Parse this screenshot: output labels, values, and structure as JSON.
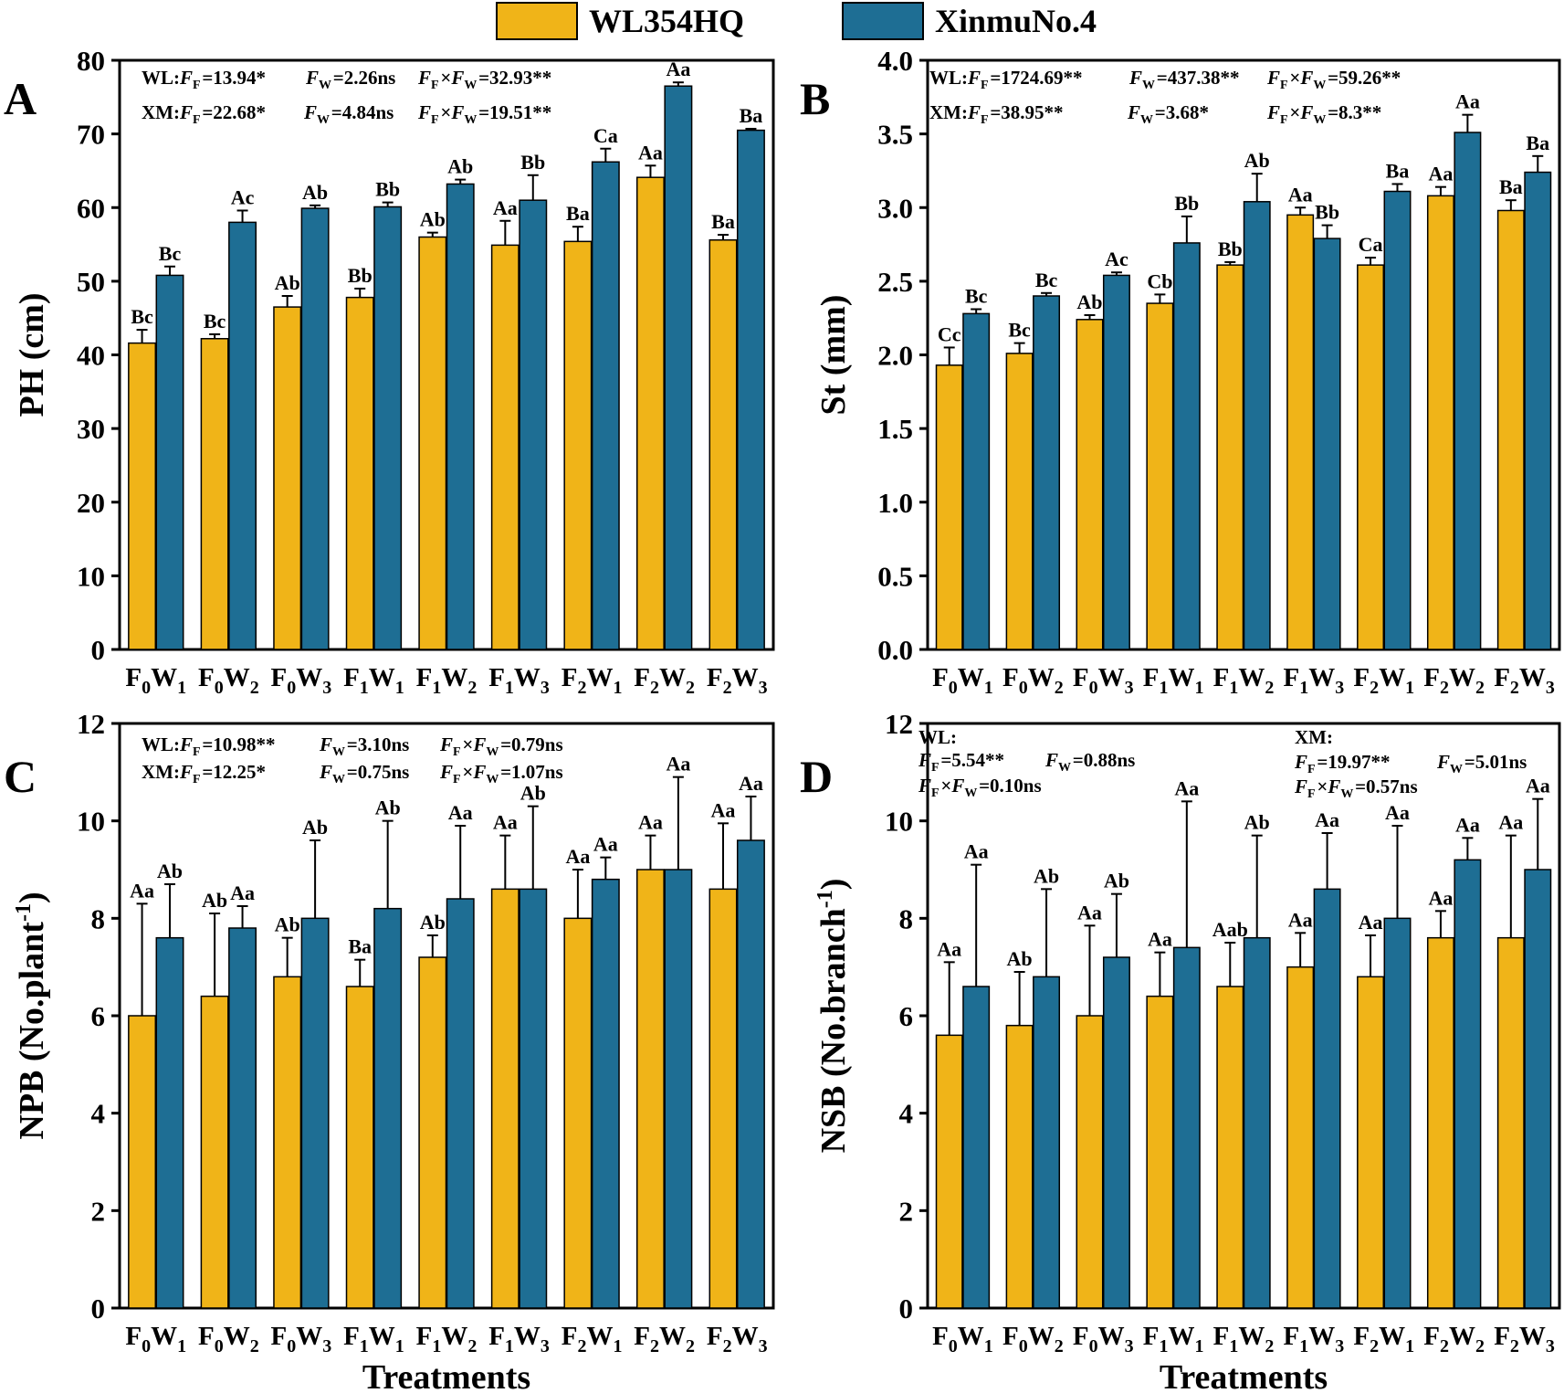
{
  "legend": {
    "series": [
      {
        "name": "WL354HQ",
        "color": "#f0b418"
      },
      {
        "name": "XinmuNo.4",
        "color": "#1e6e94"
      }
    ]
  },
  "chart_data": [
    {
      "panel": "A",
      "type": "bar",
      "ylabel": "PH (cm)",
      "xlabel": "",
      "ylim": [
        0,
        80
      ],
      "yticks": [
        0,
        10,
        20,
        30,
        40,
        50,
        60,
        70,
        80
      ],
      "categories": [
        [
          "F",
          "0",
          "W",
          "1"
        ],
        [
          "F",
          "0",
          "W",
          "2"
        ],
        [
          "F",
          "0",
          "W",
          "3"
        ],
        [
          "F",
          "1",
          "W",
          "1"
        ],
        [
          "F",
          "1",
          "W",
          "2"
        ],
        [
          "F",
          "1",
          "W",
          "3"
        ],
        [
          "F",
          "2",
          "W",
          "1"
        ],
        [
          "F",
          "2",
          "W",
          "2"
        ],
        [
          "F",
          "2",
          "W",
          "3"
        ]
      ],
      "series": [
        {
          "name": "WL354HQ",
          "values": [
            41.6,
            42.2,
            46.5,
            47.8,
            56.0,
            54.9,
            55.4,
            64.1,
            55.6
          ],
          "errors": [
            1.8,
            0.6,
            1.5,
            1.2,
            0.6,
            3.3,
            2.0,
            1.6,
            0.7
          ],
          "labels": [
            "Bc",
            "Bc",
            "Ab",
            "Bb",
            "Ab",
            "Aa",
            "Ba",
            "Aa",
            "Ba"
          ]
        },
        {
          "name": "XinmuNo.4",
          "values": [
            50.8,
            58.0,
            59.9,
            60.1,
            63.2,
            61.0,
            66.2,
            76.5,
            70.5
          ],
          "errors": [
            1.2,
            1.6,
            0.4,
            0.6,
            0.6,
            3.4,
            1.8,
            0.5,
            0.2
          ],
          "labels": [
            "Bc",
            "Ac",
            "Ab",
            "Bb",
            "Ab",
            "Bb",
            "Ca",
            "Aa",
            "Ba"
          ]
        }
      ],
      "annotations": [
        [
          [
            "WL:",
            ""
          ],
          [
            "F",
            "F"
          ],
          [
            "=13.94*",
            ""
          ],
          [
            "F",
            "W"
          ],
          [
            "=2.26ns",
            ""
          ],
          [
            "F",
            "F"
          ],
          [
            "×",
            ""
          ],
          [
            "F",
            "W"
          ],
          [
            "=32.93**",
            ""
          ]
        ],
        [
          [
            "XM:",
            ""
          ],
          [
            "F",
            "F"
          ],
          [
            "=22.68*",
            ""
          ],
          [
            "F",
            "W"
          ],
          [
            "=4.84ns",
            ""
          ],
          [
            "F",
            "F"
          ],
          [
            "×",
            ""
          ],
          [
            "F",
            "W"
          ],
          [
            "=19.51**",
            ""
          ]
        ]
      ]
    },
    {
      "panel": "B",
      "type": "bar",
      "ylabel": "St (mm)",
      "xlabel": "",
      "ylim": [
        0,
        4
      ],
      "yticks": [
        "0.0",
        "0.5",
        "1.0",
        "1.5",
        "2.0",
        "2.5",
        "3.0",
        "3.5",
        "4.0"
      ],
      "categories": [
        [
          "F",
          "0",
          "W",
          "1"
        ],
        [
          "F",
          "0",
          "W",
          "2"
        ],
        [
          "F",
          "0",
          "W",
          "3"
        ],
        [
          "F",
          "1",
          "W",
          "1"
        ],
        [
          "F",
          "1",
          "W",
          "2"
        ],
        [
          "F",
          "1",
          "W",
          "3"
        ],
        [
          "F",
          "2",
          "W",
          "1"
        ],
        [
          "F",
          "2",
          "W",
          "2"
        ],
        [
          "F",
          "2",
          "W",
          "3"
        ]
      ],
      "series": [
        {
          "name": "WL354HQ",
          "values": [
            1.93,
            2.01,
            2.24,
            2.35,
            2.61,
            2.95,
            2.61,
            3.08,
            2.98
          ],
          "errors": [
            0.12,
            0.07,
            0.03,
            0.06,
            0.02,
            0.05,
            0.05,
            0.06,
            0.07
          ],
          "labels": [
            "Cc",
            "Bc",
            "Ab",
            "Cb",
            "Bb",
            "Aa",
            "Ca",
            "Aa",
            "Ba"
          ]
        },
        {
          "name": "XinmuNo.4",
          "values": [
            2.28,
            2.4,
            2.54,
            2.76,
            3.04,
            2.79,
            3.11,
            3.51,
            3.24
          ],
          "errors": [
            0.03,
            0.02,
            0.02,
            0.18,
            0.19,
            0.09,
            0.05,
            0.12,
            0.11
          ],
          "labels": [
            "Bc",
            "Bc",
            "Ac",
            "Bb",
            "Ab",
            "Bb",
            "Ba",
            "Aa",
            "Ba"
          ]
        }
      ],
      "annotations": [
        [
          [
            "WL:",
            ""
          ],
          [
            "F",
            "F"
          ],
          [
            "=1724.69**",
            ""
          ],
          [
            "F",
            "W"
          ],
          [
            "=437.38**",
            ""
          ],
          [
            "F",
            "F"
          ],
          [
            "×",
            ""
          ],
          [
            "F",
            "W"
          ],
          [
            "=59.26**",
            ""
          ]
        ],
        [
          [
            "XM:",
            ""
          ],
          [
            "F",
            "F"
          ],
          [
            "=38.95**",
            ""
          ],
          [
            "F",
            "W"
          ],
          [
            "=3.68*",
            ""
          ],
          [
            "F",
            "F"
          ],
          [
            "×",
            ""
          ],
          [
            "F",
            "W"
          ],
          [
            "=8.3**",
            ""
          ]
        ]
      ]
    },
    {
      "panel": "C",
      "type": "bar",
      "ylabel": "NPB (No.plant",
      "ylabel_sup": "-1",
      "ylabel_end": ")",
      "xlabel": "Treatments",
      "ylim": [
        0,
        12
      ],
      "yticks": [
        0,
        2,
        4,
        6,
        8,
        10,
        12
      ],
      "categories": [
        [
          "F",
          "0",
          "W",
          "1"
        ],
        [
          "F",
          "0",
          "W",
          "2"
        ],
        [
          "F",
          "0",
          "W",
          "3"
        ],
        [
          "F",
          "1",
          "W",
          "1"
        ],
        [
          "F",
          "1",
          "W",
          "2"
        ],
        [
          "F",
          "1",
          "W",
          "3"
        ],
        [
          "F",
          "2",
          "W",
          "1"
        ],
        [
          "F",
          "2",
          "W",
          "2"
        ],
        [
          "F",
          "2",
          "W",
          "3"
        ]
      ],
      "series": [
        {
          "name": "WL354HQ",
          "values": [
            6.0,
            6.4,
            6.8,
            6.6,
            7.2,
            8.6,
            8.0,
            9.0,
            8.6
          ],
          "errors": [
            2.3,
            1.7,
            0.8,
            0.55,
            0.45,
            1.1,
            1.0,
            0.7,
            1.35
          ],
          "labels": [
            "Aa",
            "Ab",
            "Ab",
            "Ba",
            "Ab",
            "Aa",
            "Aa",
            "Aa",
            "Aa"
          ]
        },
        {
          "name": "XinmuNo.4",
          "values": [
            7.6,
            7.8,
            8.0,
            8.2,
            8.4,
            8.6,
            8.8,
            9.0,
            9.6
          ],
          "errors": [
            1.1,
            0.45,
            1.6,
            1.8,
            1.5,
            1.7,
            0.45,
            1.9,
            0.9
          ],
          "labels": [
            "Ab",
            "Aa",
            "Ab",
            "Ab",
            "Aa",
            "Ab",
            "Aa",
            "Aa",
            "Aa"
          ]
        }
      ],
      "annotations": [
        [
          [
            "WL:",
            ""
          ],
          [
            "F",
            "F"
          ],
          [
            "=10.98**",
            ""
          ],
          [
            "F",
            "W"
          ],
          [
            "=3.10ns",
            ""
          ],
          [
            "F",
            "F"
          ],
          [
            "×",
            ""
          ],
          [
            "F",
            "W"
          ],
          [
            "=0.79ns",
            ""
          ]
        ],
        [
          [
            "XM:",
            ""
          ],
          [
            "F",
            "F"
          ],
          [
            "=12.25*",
            ""
          ],
          [
            "F",
            "W"
          ],
          [
            "=0.75ns",
            ""
          ],
          [
            "F",
            "F"
          ],
          [
            "×",
            ""
          ],
          [
            "F",
            "W"
          ],
          [
            "=1.07ns",
            ""
          ]
        ]
      ]
    },
    {
      "panel": "D",
      "type": "bar",
      "ylabel": "NSB (No.branch",
      "ylabel_sup": "-1",
      "ylabel_end": ")",
      "xlabel": "Treatments",
      "ylim": [
        0,
        12
      ],
      "yticks": [
        0,
        2,
        4,
        6,
        8,
        10,
        12
      ],
      "categories": [
        [
          "F",
          "0",
          "W",
          "1"
        ],
        [
          "F",
          "0",
          "W",
          "2"
        ],
        [
          "F",
          "0",
          "W",
          "3"
        ],
        [
          "F",
          "1",
          "W",
          "1"
        ],
        [
          "F",
          "1",
          "W",
          "2"
        ],
        [
          "F",
          "1",
          "W",
          "3"
        ],
        [
          "F",
          "2",
          "W",
          "1"
        ],
        [
          "F",
          "2",
          "W",
          "2"
        ],
        [
          "F",
          "2",
          "W",
          "3"
        ]
      ],
      "series": [
        {
          "name": "WL354HQ",
          "values": [
            5.6,
            5.8,
            6.0,
            6.4,
            6.6,
            7.0,
            6.8,
            7.6,
            7.6
          ],
          "errors": [
            1.5,
            1.1,
            1.85,
            0.9,
            0.9,
            0.7,
            0.85,
            0.55,
            2.1
          ],
          "labels": [
            "Aa",
            "Ab",
            "Aa",
            "Aa",
            "Aab",
            "Aa",
            "Aa",
            "Aa",
            "Aa"
          ]
        },
        {
          "name": "XinmuNo.4",
          "values": [
            6.6,
            6.8,
            7.2,
            7.4,
            7.6,
            8.6,
            8.0,
            9.2,
            9.0
          ],
          "errors": [
            2.5,
            1.8,
            1.3,
            3.0,
            2.1,
            1.15,
            1.9,
            0.45,
            1.45
          ],
          "labels": [
            "Aa",
            "Ab",
            "Ab",
            "Aa",
            "Ab",
            "Aa",
            "Aa",
            "Aa",
            "Aa"
          ]
        }
      ],
      "annotations": [
        [
          [
            "WL:",
            ""
          ]
        ],
        [
          [
            "F",
            "F"
          ],
          [
            "=5.54**",
            ""
          ],
          [
            "F",
            "W"
          ],
          [
            "=0.88ns",
            ""
          ]
        ],
        [
          [
            "F",
            "F"
          ],
          [
            "×",
            ""
          ],
          [
            "F",
            "W"
          ],
          [
            "=0.10ns",
            ""
          ]
        ],
        [
          [
            "XM:",
            ""
          ]
        ],
        [
          [
            "F",
            "F"
          ],
          [
            "=19.97**",
            ""
          ],
          [
            "F",
            "W"
          ],
          [
            "=5.01ns",
            ""
          ]
        ],
        [
          [
            "F",
            "F"
          ],
          [
            "×",
            ""
          ],
          [
            "F",
            "W"
          ],
          [
            "=0.57ns",
            ""
          ]
        ]
      ]
    }
  ]
}
